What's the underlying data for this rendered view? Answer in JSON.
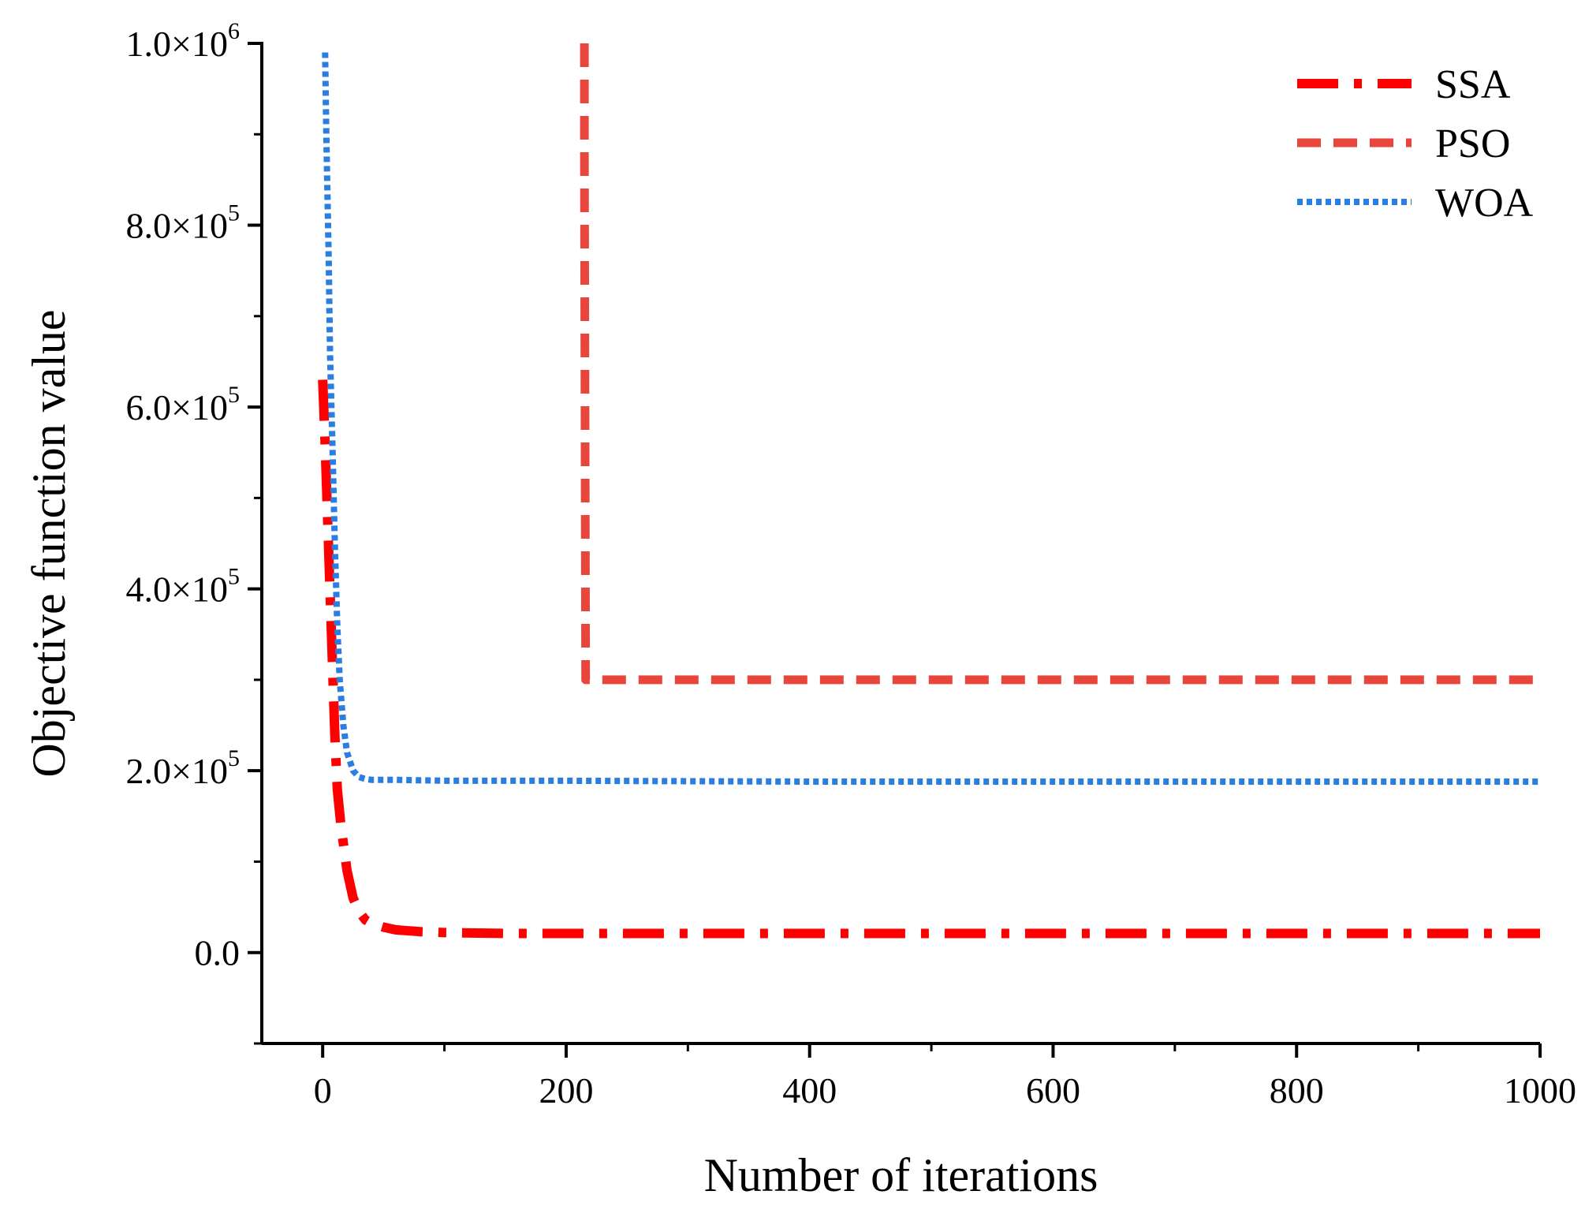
{
  "chart_data": {
    "type": "line",
    "title": "",
    "xlabel": "Number of iterations",
    "ylabel": "Objective function value",
    "xlim": [
      -50,
      1000
    ],
    "ylim": [
      -100000,
      1000000
    ],
    "x_ticks": [
      0,
      200,
      400,
      600,
      800,
      1000
    ],
    "x_tick_labels": [
      "0",
      "200",
      "400",
      "600",
      "800",
      "1000"
    ],
    "y_ticks": [
      0,
      200000,
      400000,
      600000,
      800000,
      1000000
    ],
    "y_tick_labels": [
      {
        "mantissa": "0.0",
        "exp": ""
      },
      {
        "mantissa": "2.0×10",
        "exp": "5"
      },
      {
        "mantissa": "4.0×10",
        "exp": "5"
      },
      {
        "mantissa": "6.0×10",
        "exp": "5"
      },
      {
        "mantissa": "8.0×10",
        "exp": "5"
      },
      {
        "mantissa": "1.0×10",
        "exp": "6"
      }
    ],
    "grid": false,
    "legend_position": "top-right",
    "series": [
      {
        "name": "SSA",
        "color": "#ff0000",
        "style": "dash-dot",
        "x": [
          0,
          2,
          5,
          8,
          10,
          12,
          15,
          18,
          20,
          25,
          30,
          35,
          40,
          50,
          60,
          80,
          100,
          150,
          200,
          400,
          600,
          800,
          1000
        ],
        "y": [
          630000,
          560000,
          440000,
          320000,
          240000,
          180000,
          140000,
          110000,
          90000,
          60000,
          45000,
          36000,
          32000,
          28000,
          25000,
          23000,
          22000,
          21000,
          21000,
          21000,
          21000,
          21000,
          21000
        ]
      },
      {
        "name": "PSO",
        "color": "#e8453c",
        "style": "dash",
        "x": [
          215,
          215,
          216,
          220,
          400,
          600,
          800,
          1000
        ],
        "y": [
          1000000,
          880000,
          300000,
          300000,
          300000,
          300000,
          300000,
          300000
        ]
      },
      {
        "name": "WOA",
        "color": "#2a7de1",
        "style": "dot",
        "x": [
          2,
          3,
          5,
          6,
          8,
          10,
          12,
          14,
          17,
          20,
          25,
          30,
          35,
          40,
          60,
          100,
          200,
          400,
          600,
          800,
          1000
        ],
        "y": [
          990000,
          900000,
          760000,
          660000,
          560000,
          450000,
          360000,
          300000,
          250000,
          220000,
          200000,
          193000,
          191000,
          190000,
          190000,
          189000,
          189000,
          188000,
          188000,
          188000,
          188000
        ]
      }
    ]
  }
}
